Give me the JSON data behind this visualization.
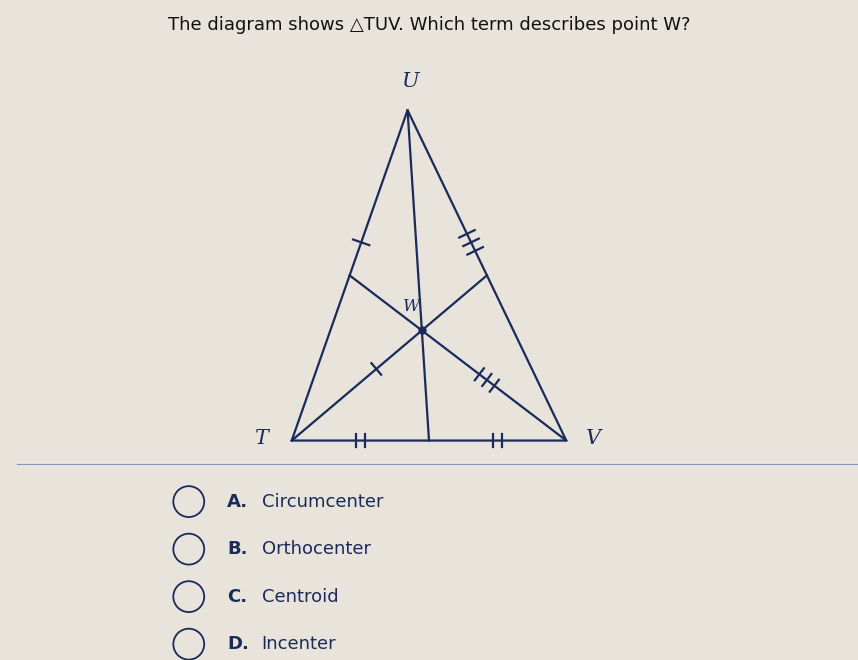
{
  "title": "The diagram shows △TUV. Which term describes point W?",
  "triangle": {
    "T": [
      0.18,
      0.05
    ],
    "U": [
      0.45,
      0.82
    ],
    "V": [
      0.82,
      0.05
    ]
  },
  "centroid_label": "W",
  "vertex_labels": {
    "T": "T",
    "U": "U",
    "V": "V"
  },
  "options": [
    {
      "letter": "A",
      "text": "Circumcenter"
    },
    {
      "letter": "B",
      "text": "Orthocenter"
    },
    {
      "letter": "C",
      "text": "Centroid"
    },
    {
      "letter": "D",
      "text": "Incenter"
    }
  ],
  "bg_color": "#e8e4dc",
  "line_color": "#1a2a5a",
  "text_color": "#1a2a5a",
  "title_color": "#111111",
  "divider_color": "#8899bb"
}
